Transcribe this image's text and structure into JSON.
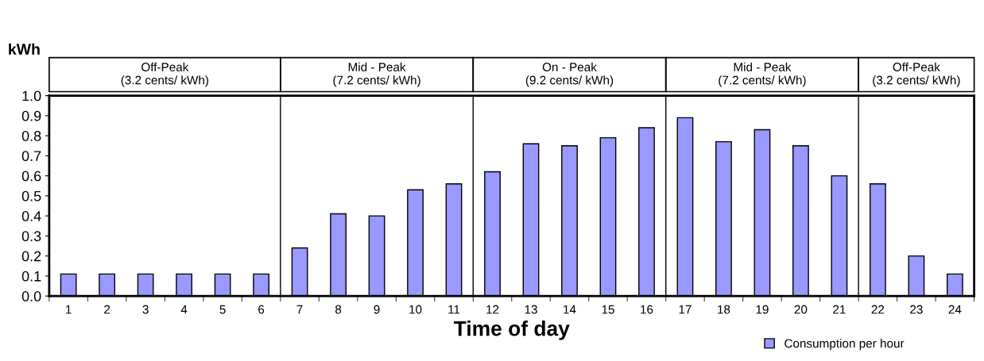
{
  "chart_data": {
    "type": "bar",
    "ylabel": "kWh",
    "xlabel": "Time of day",
    "x": [
      1,
      2,
      3,
      4,
      5,
      6,
      7,
      8,
      9,
      10,
      11,
      12,
      13,
      14,
      15,
      16,
      17,
      18,
      19,
      20,
      21,
      22,
      23,
      24
    ],
    "series": [
      {
        "name": "Consumption per hour",
        "color": "#9999ff",
        "values": [
          0.11,
          0.11,
          0.11,
          0.11,
          0.11,
          0.11,
          0.24,
          0.41,
          0.4,
          0.53,
          0.56,
          0.62,
          0.76,
          0.75,
          0.79,
          0.84,
          0.89,
          0.77,
          0.83,
          0.75,
          0.6,
          0.56,
          0.2,
          0.11
        ]
      }
    ],
    "xlim": [
      0.5,
      24.5
    ],
    "xticks": [
      1,
      2,
      3,
      4,
      5,
      6,
      7,
      8,
      9,
      10,
      11,
      12,
      13,
      14,
      15,
      16,
      17,
      18,
      19,
      20,
      21,
      22,
      23,
      24
    ],
    "ylim": [
      0,
      1
    ],
    "yticks": [
      {
        "value": 0,
        "label": "0.0"
      },
      {
        "value": 0.1,
        "label": "0.1"
      },
      {
        "value": 0.2,
        "label": "0.2"
      },
      {
        "value": 0.3,
        "label": "0.3"
      },
      {
        "value": 0.4,
        "label": "0.4"
      },
      {
        "value": 0.5,
        "label": "0.5"
      },
      {
        "value": 0.6,
        "label": "0.6"
      },
      {
        "value": 0.7,
        "label": "0.7"
      },
      {
        "value": 0.8,
        "label": "0.8"
      },
      {
        "value": 0.9,
        "label": "0.9"
      },
      {
        "value": 1,
        "label": "1.0"
      }
    ],
    "ref_lines": [
      {
        "axis": "x",
        "value": 6.5
      },
      {
        "axis": "x",
        "value": 11.5
      },
      {
        "axis": "x",
        "value": 16.5
      },
      {
        "axis": "x",
        "value": 21.5
      }
    ],
    "annotations": [
      "Off-Peak\n(3.2 cents/ kWh)",
      "Mid - Peak\n(7.2 cents/ kWh)",
      "On - Peak\n(9.2 cents/ kWh)",
      "Mid - Peak\n(7.2 cents/ kWh)",
      "Off-Peak\n(3.2 cents/ kWh)"
    ],
    "legend": "bottom right",
    "grid": false
  }
}
